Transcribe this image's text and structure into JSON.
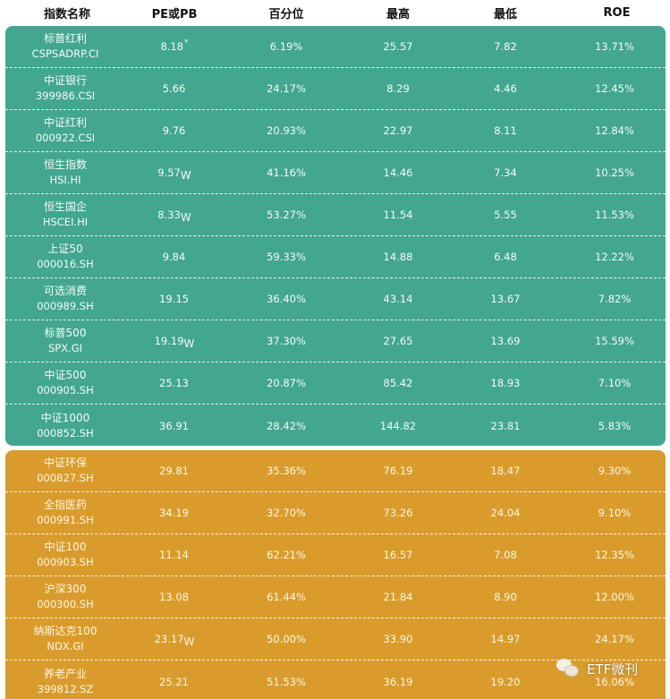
{
  "header": {
    "columns": [
      "指数名称",
      "PE或PB",
      "百分位",
      "最高",
      "最低",
      "ROE"
    ]
  },
  "colors": {
    "teal_group": "#43a690",
    "gold_group": "#d99c2c"
  },
  "teal_rows": [
    {
      "name": "标普红利",
      "code": "CSPSADRP.CI",
      "pe": "8.18",
      "mark": "*",
      "pct": "6.19%",
      "high": "25.57",
      "low": "7.82",
      "roe": "13.71%"
    },
    {
      "name": "中证银行",
      "code": "399986.CSI",
      "pe": "5.66",
      "mark": "",
      "pct": "24.17%",
      "high": "8.29",
      "low": "4.46",
      "roe": "12.45%"
    },
    {
      "name": "中证红利",
      "code": "000922.CSI",
      "pe": "9.76",
      "mark": "",
      "pct": "20.93%",
      "high": "22.97",
      "low": "8.11",
      "roe": "12.84%"
    },
    {
      "name": "恒生指数",
      "code": "HSI.HI",
      "pe": "9.57",
      "mark": "W",
      "pct": "41.16%",
      "high": "14.46",
      "low": "7.34",
      "roe": "10.25%"
    },
    {
      "name": "恒生国企",
      "code": "HSCEI.HI",
      "pe": "8.33",
      "mark": "W",
      "pct": "53.27%",
      "high": "11.54",
      "low": "5.55",
      "roe": "11.53%"
    },
    {
      "name": "上证50",
      "code": "000016.SH",
      "pe": "9.84",
      "mark": "",
      "pct": "59.33%",
      "high": "14.88",
      "low": "6.48",
      "roe": "12.22%"
    },
    {
      "name": "可选消费",
      "code": "000989.SH",
      "pe": "19.15",
      "mark": "",
      "pct": "36.40%",
      "high": "43.14",
      "low": "13.67",
      "roe": "7.82%"
    },
    {
      "name": "标普500",
      "code": "SPX.GI",
      "pe": "19.19",
      "mark": "W",
      "pct": "37.30%",
      "high": "27.65",
      "low": "13.69",
      "roe": "15.59%"
    },
    {
      "name": "中证500",
      "code": "000905.SH",
      "pe": "25.13",
      "mark": "",
      "pct": "20.87%",
      "high": "85.42",
      "low": "18.93",
      "roe": "7.10%"
    },
    {
      "name": "中证1000",
      "code": "000852.SH",
      "pe": "36.91",
      "mark": "",
      "pct": "28.42%",
      "high": "144.82",
      "low": "23.81",
      "roe": "5.83%"
    }
  ],
  "gold_rows": [
    {
      "name": "中证环保",
      "code": "000827.SH",
      "pe": "29.81",
      "mark": "",
      "pct": "35.36%",
      "high": "76.19",
      "low": "18.47",
      "roe": "9.30%"
    },
    {
      "name": "全指医药",
      "code": "000991.SH",
      "pe": "34.19",
      "mark": "",
      "pct": "32.70%",
      "high": "73.26",
      "low": "24.04",
      "roe": "9.10%"
    },
    {
      "name": "中证100",
      "code": "000903.SH",
      "pe": "11.14",
      "mark": "",
      "pct": "62.21%",
      "high": "16.57",
      "low": "7.08",
      "roe": "12.35%"
    },
    {
      "name": "沪深300",
      "code": "000300.SH",
      "pe": "13.08",
      "mark": "",
      "pct": "61.44%",
      "high": "21.84",
      "low": "8.90",
      "roe": "12.00%"
    },
    {
      "name": "纳斯达克100",
      "code": "NDX.GI",
      "pe": "23.17",
      "mark": "W",
      "pct": "50.00%",
      "high": "33.90",
      "low": "14.97",
      "roe": "24.17%"
    },
    {
      "name": "养老产业",
      "code": "399812.SZ",
      "pe": "25.21",
      "mark": "",
      "pct": "51.53%",
      "high": "36.19",
      "low": "19.20",
      "roe": "16.06%"
    }
  ],
  "watermark": {
    "icon": "wechat-icon",
    "text": "ETF微刊"
  }
}
